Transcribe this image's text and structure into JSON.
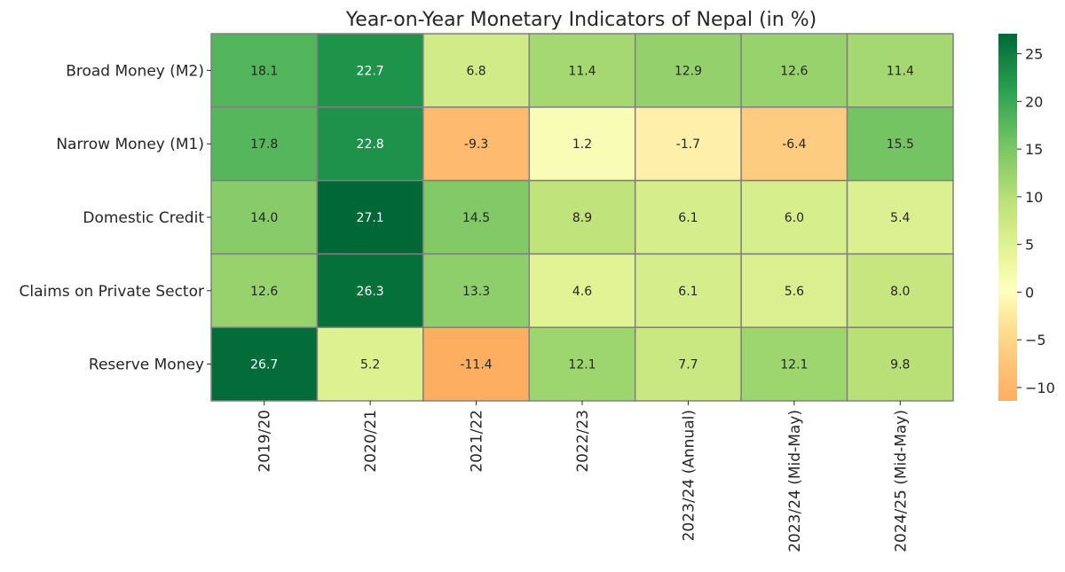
{
  "chart_data": {
    "type": "heatmap",
    "title": "Year-on-Year Monetary Indicators of Nepal (in %)",
    "rows": [
      "Broad Money (M2)",
      "Narrow Money (M1)",
      "Domestic Credit",
      "Claims on Private Sector",
      "Reserve Money"
    ],
    "columns": [
      "2019/20",
      "2020/21",
      "2021/22",
      "2022/23",
      "2023/24 (Annual)",
      "2023/24 (Mid-May)",
      "2024/25 (Mid-May)"
    ],
    "values": [
      [
        18.1,
        22.7,
        6.8,
        11.4,
        12.9,
        12.6,
        11.4
      ],
      [
        17.8,
        22.8,
        -9.3,
        1.2,
        -1.7,
        -6.4,
        15.5
      ],
      [
        14.0,
        27.1,
        14.5,
        8.9,
        6.1,
        6.0,
        5.4
      ],
      [
        12.6,
        26.3,
        13.3,
        4.6,
        6.1,
        5.6,
        8.0
      ],
      [
        26.7,
        5.2,
        -11.4,
        12.1,
        7.7,
        12.1,
        9.8
      ]
    ],
    "vmin": -11.4,
    "vmax": 27.1,
    "colormap": "RdYlGn",
    "colorbar_ticks": [
      -10,
      -5,
      0,
      5,
      10,
      15,
      20,
      25
    ],
    "colorbar_tick_labels": [
      "−10",
      "−5",
      "0",
      "5",
      "10",
      "15",
      "20",
      "25"
    ],
    "cell_border_color": "#808080"
  }
}
